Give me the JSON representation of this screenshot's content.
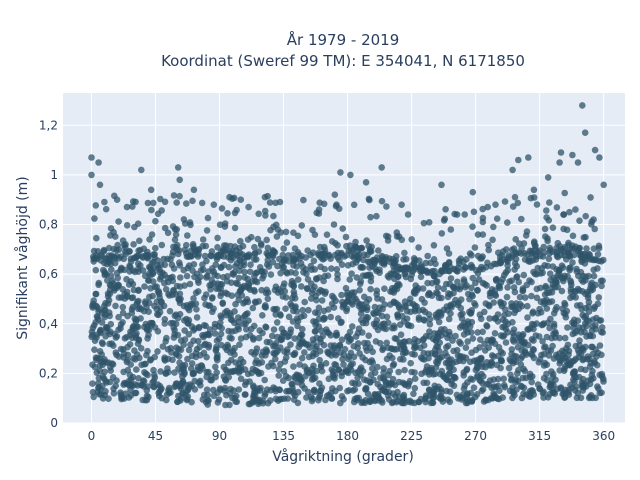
{
  "chart_data": {
    "type": "scatter",
    "title_line1": "År 1979 - 2019",
    "title_line2": "Koordinat (Sweref 99 TM): E 354041, N 6171850",
    "xlabel": "Vågriktning (grader)",
    "ylabel": "Signifikant våghöjd (m)",
    "xlim": [
      -20,
      375
    ],
    "ylim": [
      0,
      1.33
    ],
    "xticks": [
      {
        "value": 0,
        "label": "0"
      },
      {
        "value": 45,
        "label": "45"
      },
      {
        "value": 90,
        "label": "90"
      },
      {
        "value": 135,
        "label": "135"
      },
      {
        "value": 180,
        "label": "180"
      },
      {
        "value": 225,
        "label": "225"
      },
      {
        "value": 270,
        "label": "270"
      },
      {
        "value": 315,
        "label": "315"
      },
      {
        "value": 360,
        "label": "360"
      }
    ],
    "yticks": [
      {
        "value": 0,
        "label": "0"
      },
      {
        "value": 0.2,
        "label": "0,2"
      },
      {
        "value": 0.4,
        "label": "0,4"
      },
      {
        "value": 0.6,
        "label": "0,6"
      },
      {
        "value": 0.8,
        "label": "0,8"
      },
      {
        "value": 1,
        "label": "1"
      },
      {
        "value": 1.2,
        "label": "1,2"
      }
    ],
    "grid": true,
    "plot_bgcolor": "#e5ecf6",
    "marker_color": "#2f5469",
    "envelope": [
      {
        "x": 0,
        "min": 0.1,
        "upper": 0.7
      },
      {
        "x": 45,
        "min": 0.09,
        "upper": 0.72
      },
      {
        "x": 90,
        "min": 0.07,
        "upper": 0.72
      },
      {
        "x": 135,
        "min": 0.08,
        "upper": 0.7
      },
      {
        "x": 180,
        "min": 0.08,
        "upper": 0.72
      },
      {
        "x": 225,
        "min": 0.08,
        "upper": 0.66
      },
      {
        "x": 270,
        "min": 0.08,
        "upper": 0.66
      },
      {
        "x": 315,
        "min": 0.1,
        "upper": 0.74
      },
      {
        "x": 360,
        "min": 0.1,
        "upper": 0.7
      }
    ],
    "outliers": [
      {
        "x": 345,
        "y": 1.28
      },
      {
        "x": 347,
        "y": 1.17
      },
      {
        "x": 0,
        "y": 1.07
      },
      {
        "x": 5,
        "y": 1.05
      },
      {
        "x": 0,
        "y": 1.0
      },
      {
        "x": 6,
        "y": 0.96
      },
      {
        "x": 35,
        "y": 1.02
      },
      {
        "x": 61,
        "y": 1.03
      },
      {
        "x": 62,
        "y": 0.98
      },
      {
        "x": 175,
        "y": 1.01
      },
      {
        "x": 182,
        "y": 1.0
      },
      {
        "x": 204,
        "y": 1.03
      },
      {
        "x": 300,
        "y": 1.06
      },
      {
        "x": 307,
        "y": 1.07
      },
      {
        "x": 330,
        "y": 1.09
      },
      {
        "x": 338,
        "y": 1.08
      },
      {
        "x": 354,
        "y": 1.1
      },
      {
        "x": 342,
        "y": 1.05
      },
      {
        "x": 296,
        "y": 1.02
      },
      {
        "x": 357,
        "y": 1.07
      },
      {
        "x": 321,
        "y": 0.99
      },
      {
        "x": 329,
        "y": 1.05
      },
      {
        "x": 72,
        "y": 0.94
      },
      {
        "x": 42,
        "y": 0.94
      },
      {
        "x": 97,
        "y": 0.91
      },
      {
        "x": 105,
        "y": 0.9
      },
      {
        "x": 193,
        "y": 0.97
      },
      {
        "x": 246,
        "y": 0.96
      },
      {
        "x": 268,
        "y": 0.93
      },
      {
        "x": 360,
        "y": 0.96
      },
      {
        "x": 18,
        "y": 0.9
      },
      {
        "x": 25,
        "y": 0.87
      },
      {
        "x": 86,
        "y": 0.88
      },
      {
        "x": 131,
        "y": 0.78
      },
      {
        "x": 160,
        "y": 0.86
      },
      {
        "x": 171,
        "y": 0.92
      },
      {
        "x": 218,
        "y": 0.88
      },
      {
        "x": 257,
        "y": 0.84
      },
      {
        "x": 284,
        "y": 0.88
      },
      {
        "x": 311,
        "y": 0.94
      }
    ]
  }
}
